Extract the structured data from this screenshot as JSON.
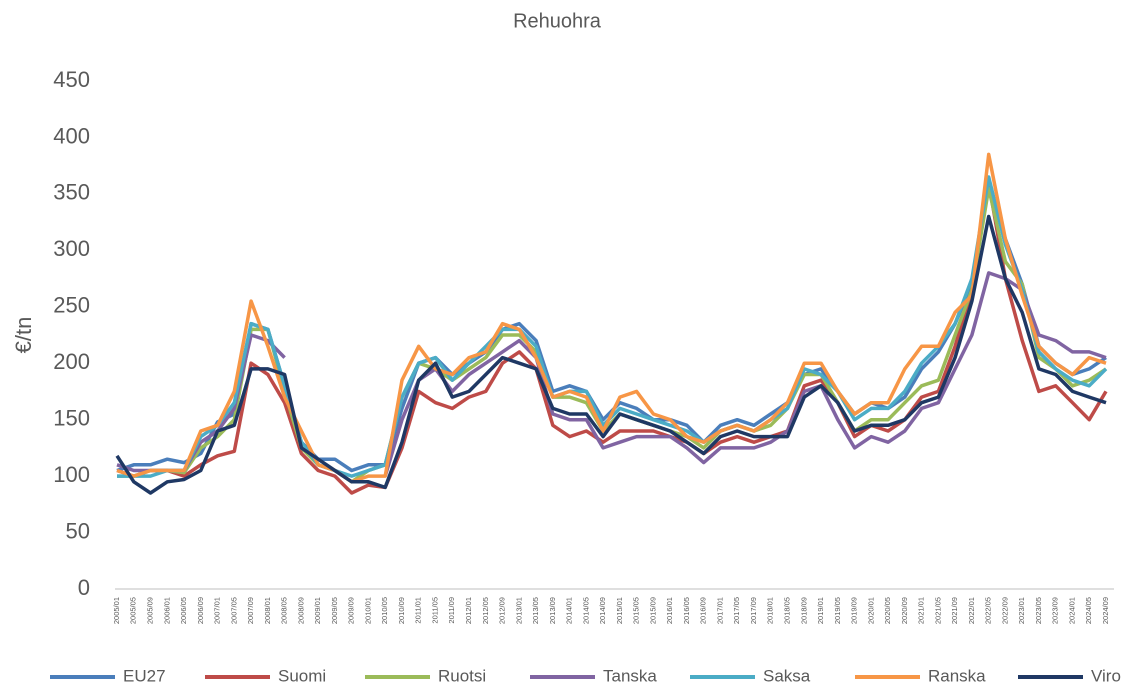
{
  "chart_data": {
    "type": "line",
    "title": "Rehuohra",
    "y_label": "€/tn",
    "categories": [
      "2005/01",
      "2005/05",
      "2005/09",
      "2006/01",
      "2006/05",
      "2006/09",
      "2007/01",
      "2007/05",
      "2007/09",
      "2008/01",
      "2008/05",
      "2008/09",
      "2009/01",
      "2009/05",
      "2009/09",
      "2010/01",
      "2010/05",
      "2010/09",
      "2011/01",
      "2011/05",
      "2011/09",
      "2012/01",
      "2012/05",
      "2012/09",
      "2013/01",
      "2013/05",
      "2013/09",
      "2014/01",
      "2014/05",
      "2014/09",
      "2015/01",
      "2015/05",
      "2015/09",
      "2016/01",
      "2016/05",
      "2016/09",
      "2017/01",
      "2017/05",
      "2017/09",
      "2018/01",
      "2018/05",
      "2018/09",
      "2019/01",
      "2019/05",
      "2019/09",
      "2020/01",
      "2020/05",
      "2020/09",
      "2021/01",
      "2021/05",
      "2021/09",
      "2022/01",
      "2022/05",
      "2022/09",
      "2023/01",
      "2023/05",
      "2023/09",
      "2024/01",
      "2024/05",
      "2024/09"
    ],
    "series": [
      {
        "name": "EU27",
        "color": "#4a7ebb",
        "values": [
          105,
          110,
          110,
          115,
          112,
          120,
          148,
          155,
          235,
          230,
          180,
          130,
          115,
          115,
          105,
          110,
          110,
          160,
          200,
          205,
          190,
          200,
          210,
          230,
          235,
          220,
          175,
          180,
          175,
          150,
          165,
          160,
          150,
          150,
          145,
          130,
          145,
          150,
          145,
          155,
          165,
          190,
          195,
          175,
          155,
          165,
          160,
          170,
          195,
          210,
          235,
          270,
          360,
          310,
          270,
          215,
          200,
          190,
          195,
          205
        ]
      },
      {
        "name": "Suomi",
        "color": "#be4b48",
        "values": [
          105,
          100,
          105,
          105,
          100,
          110,
          118,
          122,
          200,
          190,
          165,
          120,
          105,
          100,
          85,
          92,
          90,
          125,
          175,
          165,
          160,
          170,
          175,
          200,
          210,
          195,
          145,
          135,
          140,
          130,
          140,
          140,
          140,
          135,
          130,
          120,
          130,
          135,
          130,
          135,
          140,
          180,
          185,
          165,
          135,
          145,
          140,
          150,
          170,
          175,
          215,
          265,
          360,
          275,
          220,
          175,
          180,
          165,
          150,
          175
        ]
      },
      {
        "name": "Ruotsi",
        "color": "#9bbb59",
        "values": [
          100,
          100,
          105,
          105,
          103,
          125,
          135,
          150,
          230,
          230,
          175,
          125,
          110,
          105,
          95,
          105,
          110,
          170,
          200,
          195,
          185,
          195,
          205,
          225,
          225,
          210,
          170,
          170,
          165,
          140,
          155,
          150,
          145,
          140,
          135,
          125,
          140,
          145,
          140,
          145,
          160,
          190,
          190,
          165,
          140,
          150,
          150,
          165,
          180,
          185,
          225,
          265,
          355,
          290,
          270,
          205,
          195,
          180,
          185,
          195
        ]
      },
      {
        "name": "Tanska",
        "color": "#8064a2",
        "values": [
          110,
          105,
          105,
          105,
          105,
          130,
          140,
          160,
          225,
          220,
          205,
          null,
          null,
          null,
          null,
          null,
          100,
          150,
          185,
          195,
          175,
          190,
          200,
          210,
          220,
          205,
          155,
          150,
          150,
          125,
          130,
          135,
          135,
          135,
          125,
          112,
          125,
          125,
          125,
          130,
          140,
          175,
          180,
          150,
          125,
          135,
          130,
          140,
          160,
          165,
          195,
          225,
          280,
          275,
          265,
          225,
          220,
          210,
          210,
          205
        ]
      },
      {
        "name": "Saksa",
        "color": "#4bacc6",
        "values": [
          100,
          100,
          100,
          105,
          105,
          135,
          145,
          165,
          235,
          230,
          180,
          130,
          110,
          105,
          100,
          105,
          110,
          170,
          200,
          205,
          185,
          200,
          215,
          230,
          230,
          215,
          170,
          175,
          175,
          145,
          160,
          155,
          150,
          145,
          140,
          130,
          140,
          145,
          140,
          150,
          160,
          195,
          190,
          175,
          150,
          160,
          160,
          175,
          200,
          215,
          235,
          275,
          365,
          305,
          265,
          210,
          195,
          185,
          180,
          195
        ]
      },
      {
        "name": "Ranska",
        "color": "#f79646",
        "values": [
          105,
          100,
          105,
          105,
          105,
          140,
          145,
          175,
          255,
          215,
          170,
          140,
          110,
          105,
          95,
          100,
          100,
          185,
          215,
          195,
          190,
          205,
          210,
          235,
          230,
          205,
          170,
          175,
          170,
          140,
          170,
          175,
          155,
          150,
          135,
          130,
          140,
          145,
          140,
          150,
          165,
          200,
          200,
          175,
          155,
          165,
          165,
          195,
          215,
          215,
          245,
          260,
          385,
          310,
          260,
          215,
          200,
          190,
          205,
          200
        ]
      },
      {
        "name": "Viro",
        "color": "#1f3864",
        "values": [
          118,
          95,
          85,
          95,
          97,
          105,
          140,
          145,
          195,
          195,
          190,
          125,
          115,
          105,
          95,
          95,
          90,
          130,
          185,
          200,
          170,
          175,
          190,
          205,
          200,
          195,
          160,
          155,
          155,
          135,
          155,
          150,
          145,
          140,
          130,
          120,
          135,
          140,
          135,
          135,
          135,
          170,
          180,
          165,
          140,
          145,
          145,
          150,
          165,
          170,
          205,
          255,
          330,
          275,
          245,
          195,
          190,
          175,
          170,
          165
        ]
      }
    ],
    "ylim": [
      0,
      450
    ],
    "yticks": [
      0,
      50,
      100,
      150,
      200,
      250,
      300,
      350,
      400,
      450
    ],
    "grid": false
  }
}
